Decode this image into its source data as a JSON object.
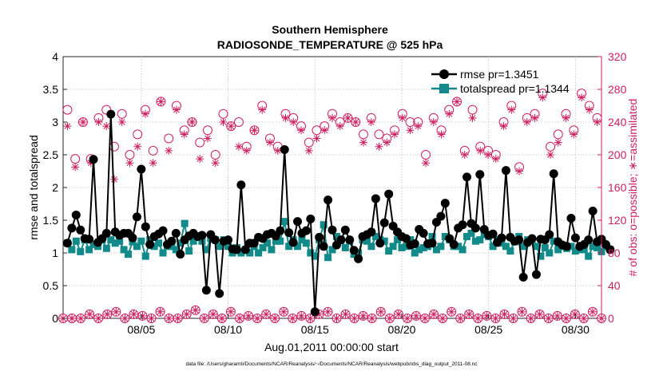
{
  "chart_data": {
    "type": "line",
    "title": "Southern Hemisphere",
    "subtitle": "RADIOSONDE_TEMPERATURE @ 525 hPa",
    "xlabel": "Aug.01,2011 00:00:00 start",
    "ylabel": "rmse and totalspread",
    "y2label": "# of obs: o=possible; ∗=assimilated",
    "footnote": "data file: /Users/gharamti/Documents/NCAR/Reanalysis/~/Documents/NCAR/Reanalysis/webpub/obs_diag_output_2011-08.nc",
    "xlim": [
      0.5,
      31.5
    ],
    "ylim": [
      0,
      4
    ],
    "y2lim": [
      0,
      320
    ],
    "xticks": [
      5,
      10,
      15,
      20,
      25,
      30
    ],
    "xtick_labels": [
      "08/05",
      "08/10",
      "08/15",
      "08/20",
      "08/25",
      "08/30"
    ],
    "yticks": [
      0,
      0.5,
      1,
      1.5,
      2,
      2.5,
      3,
      3.5,
      4
    ],
    "ytick_labels": [
      "0",
      "0.5",
      "1",
      "1.5",
      "2",
      "2.5",
      "3",
      "3.5",
      "4"
    ],
    "y2ticks": [
      0,
      40,
      80,
      120,
      160,
      200,
      240,
      280,
      320
    ],
    "y2tick_labels": [
      "0",
      "40",
      "80",
      "120",
      "160",
      "200",
      "240",
      "280",
      "320"
    ],
    "grid": true,
    "legend_position": "top-right",
    "colors": {
      "rmse": "#000000",
      "spread": "#138a8a",
      "obs": "#cc1f5e"
    },
    "legend": [
      {
        "key": "rmse",
        "label": "rmse pr=1.3451"
      },
      {
        "key": "spread",
        "label": "totalspread pr=1.1344"
      }
    ],
    "series_x_start": 0.75,
    "series_x_step": 0.25,
    "rmse": [
      1.15,
      1.38,
      1.58,
      1.35,
      1.22,
      1.21,
      2.43,
      1.16,
      1.22,
      1.3,
      3.12,
      1.32,
      1.27,
      1.3,
      1.3,
      1.23,
      1.55,
      2.28,
      1.4,
      1.13,
      1.25,
      1.29,
      1.34,
      1.13,
      1.18,
      1.3,
      0.98,
      1.2,
      1.26,
      1.3,
      1.25,
      1.27,
      0.43,
      1.28,
      1.2,
      0.38,
      1.18,
      1.2,
      1.06,
      1.05,
      2.04,
      1.05,
      1.15,
      1.15,
      1.24,
      1.22,
      1.28,
      1.3,
      1.26,
      1.34,
      2.58,
      1.31,
      1.16,
      1.48,
      1.3,
      1.34,
      1.52,
      0.1,
      1.24,
      1.1,
      1.81,
      1.35,
      1.12,
      1.2,
      1.35,
      1.2,
      1.04,
      0.91,
      1.25,
      1.28,
      1.32,
      1.83,
      1.15,
      1.46,
      1.9,
      1.41,
      1.32,
      1.25,
      1.22,
      1.12,
      1.14,
      1.36,
      1.3,
      1.14,
      1.15,
      1.47,
      1.56,
      1.76,
      1.22,
      1.13,
      1.38,
      1.43,
      2.16,
      1.45,
      1.38,
      2.2,
      1.36,
      1.27,
      1.29,
      1.16,
      1.23,
      2.26,
      1.24,
      1.18,
      1.2,
      0.63,
      1.16,
      1.22,
      0.67,
      1.21,
      1.2,
      1.28,
      2.21,
      1.17,
      1.12,
      1.1,
      1.53,
      1.23,
      1.1,
      1.13,
      1.2,
      1.64,
      1.17,
      1.21,
      1.13,
      1.05
    ],
    "spread": [
      1.15,
      1.05,
      1.18,
      1.02,
      1.2,
      1.05,
      1.13,
      1.1,
      1.2,
      1.07,
      1.2,
      1.15,
      1.18,
      1.05,
      0.98,
      1.17,
      1.1,
      1.18,
      0.95,
      1.2,
      1.1,
      1.15,
      1.0,
      1.1,
      1.1,
      1.05,
      1.15,
      1.45,
      1.03,
      1.18,
      1.25,
      1.18,
      1.05,
      1.22,
      1.2,
      1.1,
      1.2,
      1.1,
      1.0,
      1.08,
      1.0,
      1.05,
      1.0,
      1.1,
      1.0,
      1.08,
      1.15,
      1.05,
      1.18,
      1.18,
      1.48,
      1.1,
      1.2,
      1.1,
      1.2,
      1.15,
      1.0,
      0.95,
      1.2,
      1.43,
      0.93,
      1.05,
      1.25,
      1.2,
      1.08,
      1.18,
      0.98,
      1.0,
      1.2,
      1.18,
      1.1,
      1.25,
      1.2,
      1.18,
      1.03,
      1.1,
      1.2,
      1.08,
      1.1,
      1.2,
      1.0,
      1.05,
      1.08,
      1.1,
      1.25,
      1.05,
      1.1,
      1.25,
      1.2,
      1.1,
      1.1,
      1.05,
      1.25,
      1.3,
      1.18,
      1.2,
      1.28,
      1.25,
      1.1,
      1.2,
      1.15,
      1.1,
      1.03,
      1.17,
      1.25,
      1.1,
      1.2,
      1.2,
      1.1,
      0.95,
      1.08,
      1.0,
      1.18,
      1.05,
      1.1,
      1.07,
      1.1,
      1.03,
      1.05,
      1.05,
      0.95,
      1.1,
      1.08,
      1.02,
      1.1,
      1.05
    ],
    "obs_possible": [
      255,
      195,
      240,
      195,
      245,
      255,
      210,
      250,
      200,
      225,
      255,
      205,
      265,
      220,
      260,
      230,
      240,
      215,
      230,
      200,
      250,
      235,
      240,
      210,
      230,
      260,
      220,
      210,
      250,
      245,
      235,
      215,
      230,
      235,
      250,
      240,
      245,
      240,
      225,
      245,
      225,
      220,
      230,
      250,
      240,
      240,
      200,
      245,
      230,
      255,
      265,
      205,
      255,
      210,
      205,
      200,
      240,
      260,
      185,
      245,
      250,
      275,
      210,
      225,
      250,
      230,
      275,
      260,
      245
    ],
    "obs_assimilated": [
      235,
      185,
      240,
      190,
      240,
      235,
      170,
      240,
      190,
      210,
      250,
      190,
      265,
      205,
      255,
      225,
      240,
      195,
      220,
      190,
      240,
      235,
      210,
      205,
      230,
      255,
      215,
      205,
      245,
      240,
      230,
      205,
      220,
      230,
      245,
      235,
      245,
      240,
      215,
      240,
      210,
      215,
      225,
      245,
      230,
      235,
      190,
      240,
      225,
      250,
      265,
      200,
      245,
      205,
      200,
      195,
      235,
      255,
      180,
      240,
      245,
      270,
      200,
      215,
      245,
      225,
      270,
      255,
      240
    ],
    "obs_possible_low": [
      0,
      0,
      0,
      5,
      0,
      5,
      8,
      0,
      5,
      3,
      0,
      8,
      0,
      0,
      5,
      10,
      0,
      5,
      0,
      8,
      0,
      3,
      0,
      5,
      0,
      8,
      0,
      3,
      0,
      5,
      8,
      0,
      5,
      0,
      3,
      0,
      8,
      0,
      5,
      0,
      3,
      0,
      5,
      0,
      8,
      0,
      5,
      0,
      3,
      0,
      5,
      0,
      8,
      0,
      5,
      0,
      3,
      0,
      5,
      0,
      8,
      0
    ],
    "obs_assimilated_low": [
      0,
      0,
      0,
      5,
      0,
      5,
      8,
      0,
      5,
      3,
      0,
      8,
      0,
      0,
      5,
      10,
      0,
      5,
      0,
      8,
      0,
      3,
      0,
      5,
      0,
      8,
      0,
      3,
      0,
      5,
      8,
      0,
      5,
      0,
      3,
      0,
      8,
      0,
      5,
      0,
      3,
      0,
      5,
      0,
      8,
      0,
      5,
      0,
      3,
      0,
      5,
      0,
      8,
      0,
      5,
      0,
      3,
      0,
      5,
      0,
      8,
      0
    ]
  }
}
